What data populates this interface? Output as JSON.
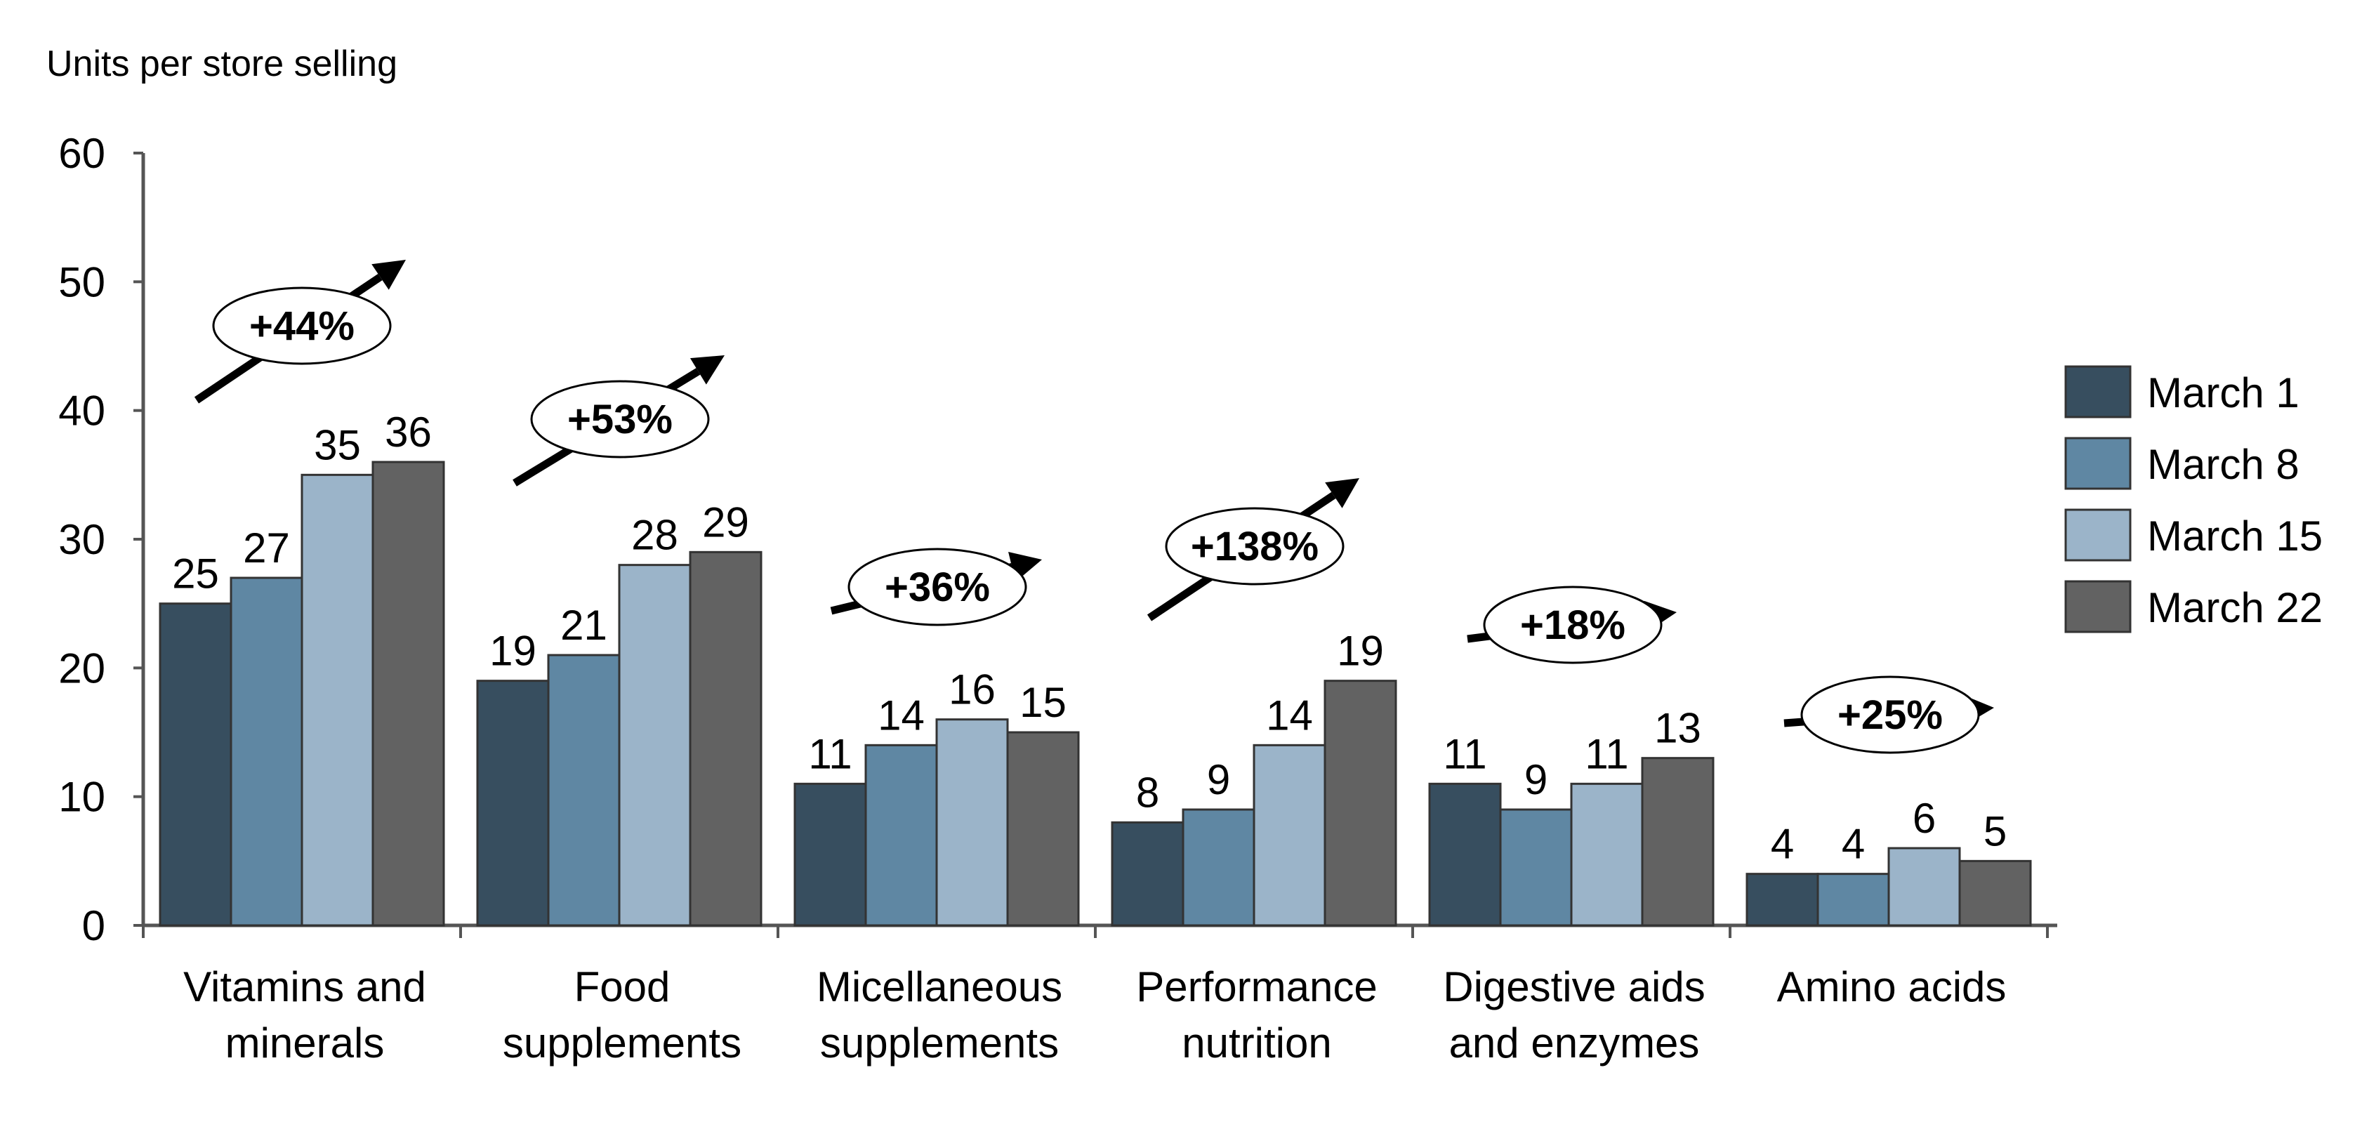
{
  "chart_data": {
    "type": "bar",
    "ylabel": "Units per store selling",
    "ylim": [
      0,
      60
    ],
    "yticks": [
      "0",
      "10",
      "20",
      "30",
      "40",
      "50",
      "60"
    ],
    "categories": [
      [
        "Vitamins and",
        "minerals"
      ],
      [
        "Food",
        "supplements"
      ],
      [
        "Micellaneous",
        "supplements"
      ],
      [
        "Performance",
        "nutrition"
      ],
      [
        "Digestive aids",
        "and enzymes"
      ],
      [
        "Amino acids"
      ]
    ],
    "series": [
      {
        "name": "March 1",
        "color": "#374e5f",
        "values": [
          25,
          19,
          11,
          8,
          11,
          4
        ]
      },
      {
        "name": "March 8",
        "color": "#5f87a3",
        "values": [
          27,
          21,
          14,
          9,
          9,
          4
        ]
      },
      {
        "name": "March 15",
        "color": "#9bb4c9",
        "values": [
          35,
          28,
          16,
          14,
          11,
          6
        ]
      },
      {
        "name": "March 22",
        "color": "#626262",
        "values": [
          36,
          29,
          15,
          19,
          13,
          5
        ]
      }
    ],
    "growth_badges": [
      "+44%",
      "+53%",
      "+36%",
      "+138%",
      "+18%",
      "+25%"
    ],
    "legend_position": "right",
    "grid": false
  }
}
